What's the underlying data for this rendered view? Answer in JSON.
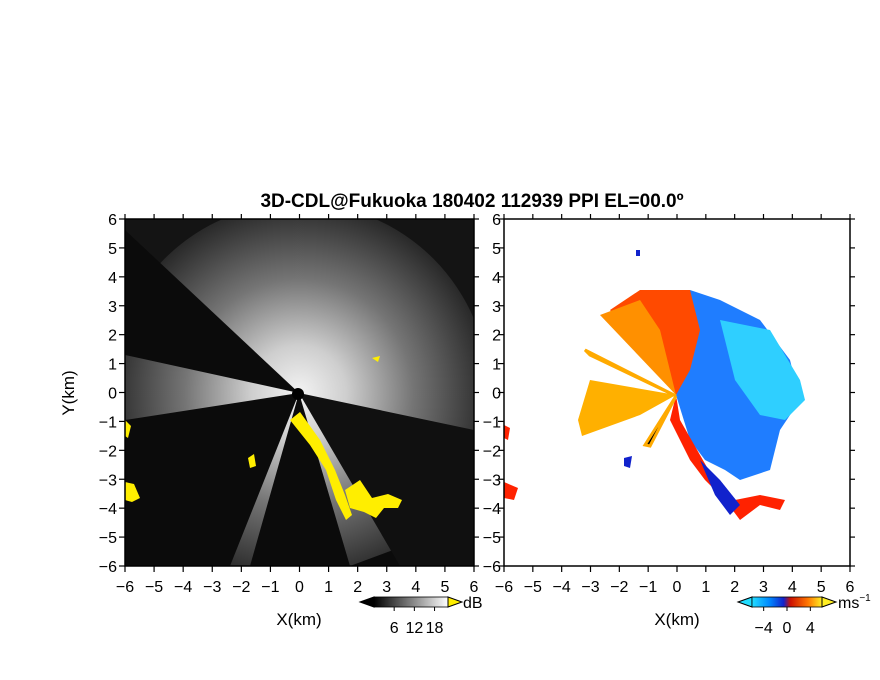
{
  "title": "3D-CDL@Fukuoka 180402 112939 PPI EL=00.0º",
  "chart_data": [
    {
      "type": "heatmap",
      "panel": "left",
      "quantity": "SNR",
      "xlabel": "X(km)",
      "ylabel": "Y(km)",
      "xlim": [
        -6,
        6
      ],
      "ylim": [
        -6,
        6
      ],
      "xticks": [
        "−6",
        "−5",
        "−4",
        "−3",
        "−2",
        "−1",
        "0",
        "1",
        "2",
        "3",
        "4",
        "5",
        "6"
      ],
      "yticks": [
        "6",
        "5",
        "4",
        "3",
        "2",
        "1",
        "0",
        "−1",
        "−2",
        "−3",
        "−4",
        "−5",
        "−6"
      ],
      "colorbar": {
        "unit": "dB",
        "ticks": [
          "6",
          "12",
          "18"
        ],
        "tick_values": [
          6,
          12,
          18
        ],
        "range": [
          0,
          22
        ]
      },
      "colors": {
        "background": "#111111",
        "max": "#ffffff",
        "highlight": "#ffee00"
      }
    },
    {
      "type": "heatmap",
      "panel": "right",
      "quantity": "Doppler velocity",
      "xlabel": "X(km)",
      "ylabel": "",
      "xlim": [
        -6,
        6
      ],
      "ylim": [
        -6,
        6
      ],
      "xticks": [
        "−6",
        "−5",
        "−4",
        "−3",
        "−2",
        "−1",
        "0",
        "1",
        "2",
        "3",
        "4",
        "5",
        "6"
      ],
      "yticks": [
        "6",
        "5",
        "4",
        "3",
        "2",
        "1",
        "0",
        "−1",
        "−2",
        "−3",
        "−4",
        "−5",
        "−6"
      ],
      "colorbar": {
        "unit": "ms",
        "unit_exp": "−1",
        "ticks": [
          "−4",
          "0",
          "4"
        ],
        "tick_values": [
          -4,
          0,
          4
        ],
        "range": [
          -6,
          6
        ]
      },
      "colors": {
        "negative_far": "#22ddff",
        "negative": "#1144ff",
        "positive": "#ff3300",
        "positive_far": "#ffdd22"
      }
    }
  ]
}
